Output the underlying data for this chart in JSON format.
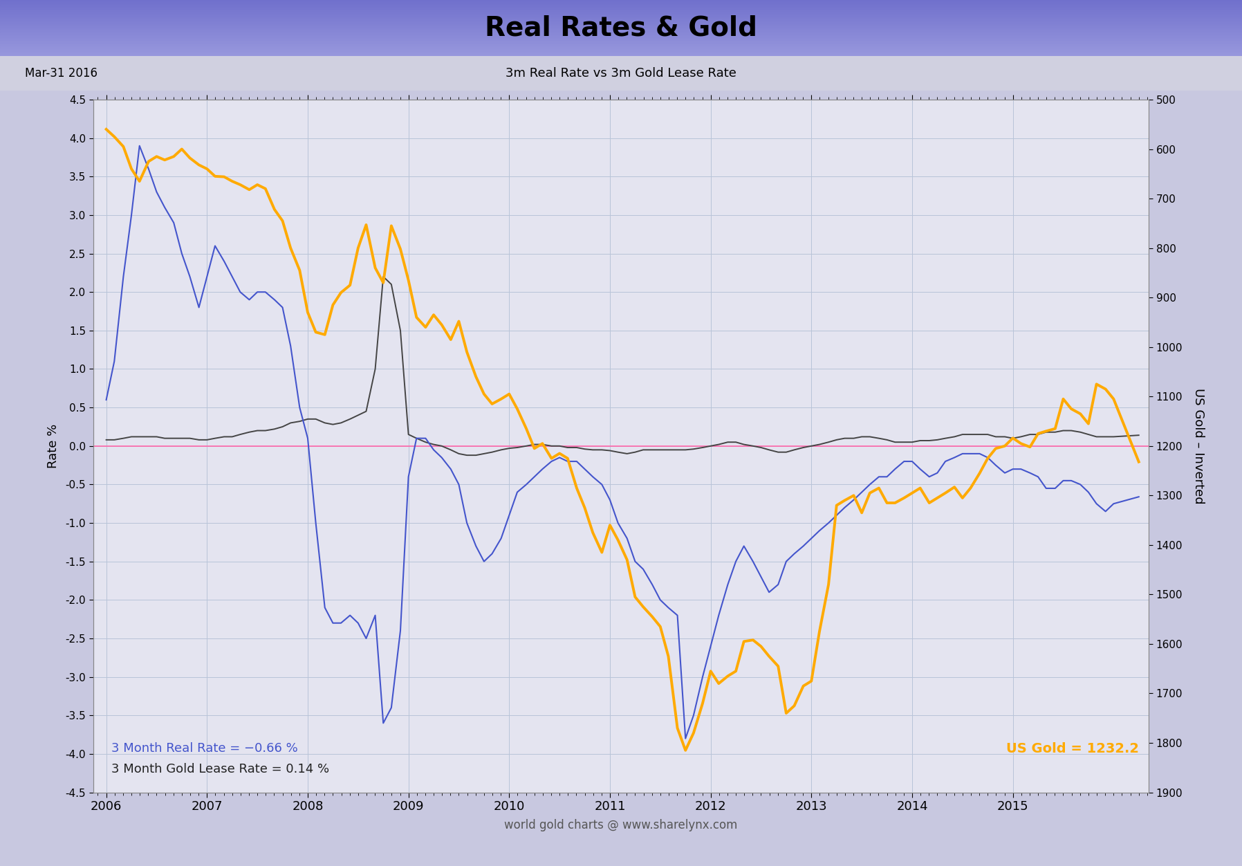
{
  "title": "Real Rates & Gold",
  "subtitle_left": "Mar-31 2016",
  "subtitle_center": "3m Real Rate vs 3m Gold Lease Rate",
  "xlabel": "world gold charts @ www.sharelynx.com",
  "ylabel_left": "Rate %",
  "ylabel_right": "US Gold – Inverted",
  "ylim_left": [
    -4.5,
    4.5
  ],
  "annotation_blue": "3 Month Real Rate = −0.66 %",
  "annotation_black": "3 Month Gold Lease Rate = 0.14 %",
  "annotation_gold": "US Gold = 1232.2",
  "background_color": "#c8c8e0",
  "plot_bg_color": "#e4e4f0",
  "grid_color": "#b8c4d8",
  "title_bg_color_top": "#7070cc",
  "title_bg_color_bottom": "#9898dd",
  "blue_line_color": "#4455cc",
  "gold_line_color": "#ffaa00",
  "black_line_color": "#444444",
  "pink_line_color": "#ff66aa",
  "real_rate_data": {
    "x": [
      2006.0,
      2006.08,
      2006.17,
      2006.25,
      2006.33,
      2006.42,
      2006.5,
      2006.58,
      2006.67,
      2006.75,
      2006.83,
      2006.92,
      2007.0,
      2007.08,
      2007.17,
      2007.25,
      2007.33,
      2007.42,
      2007.5,
      2007.58,
      2007.67,
      2007.75,
      2007.83,
      2007.92,
      2008.0,
      2008.08,
      2008.17,
      2008.25,
      2008.33,
      2008.42,
      2008.5,
      2008.58,
      2008.67,
      2008.75,
      2008.83,
      2008.92,
      2009.0,
      2009.08,
      2009.17,
      2009.25,
      2009.33,
      2009.42,
      2009.5,
      2009.58,
      2009.67,
      2009.75,
      2009.83,
      2009.92,
      2010.0,
      2010.08,
      2010.17,
      2010.25,
      2010.33,
      2010.42,
      2010.5,
      2010.58,
      2010.67,
      2010.75,
      2010.83,
      2010.92,
      2011.0,
      2011.08,
      2011.17,
      2011.25,
      2011.33,
      2011.42,
      2011.5,
      2011.58,
      2011.67,
      2011.75,
      2011.83,
      2011.92,
      2012.0,
      2012.08,
      2012.17,
      2012.25,
      2012.33,
      2012.42,
      2012.5,
      2012.58,
      2012.67,
      2012.75,
      2012.83,
      2012.92,
      2013.0,
      2013.08,
      2013.17,
      2013.25,
      2013.33,
      2013.42,
      2013.5,
      2013.58,
      2013.67,
      2013.75,
      2013.83,
      2013.92,
      2014.0,
      2014.08,
      2014.17,
      2014.25,
      2014.33,
      2014.42,
      2014.5,
      2014.58,
      2014.67,
      2014.75,
      2014.83,
      2014.92,
      2015.0,
      2015.08,
      2015.17,
      2015.25,
      2015.33,
      2015.42,
      2015.5,
      2015.58,
      2015.67,
      2015.75,
      2015.83,
      2015.92,
      2016.0,
      2016.25
    ],
    "y": [
      0.6,
      1.1,
      2.2,
      3.0,
      3.9,
      3.6,
      3.3,
      3.1,
      2.9,
      2.5,
      2.2,
      1.8,
      2.2,
      2.6,
      2.4,
      2.2,
      2.0,
      1.9,
      2.0,
      2.0,
      1.9,
      1.8,
      1.3,
      0.5,
      0.1,
      -1.0,
      -2.1,
      -2.3,
      -2.3,
      -2.2,
      -2.3,
      -2.5,
      -2.2,
      -3.6,
      -3.4,
      -2.4,
      -0.4,
      0.1,
      0.1,
      -0.05,
      -0.15,
      -0.3,
      -0.5,
      -1.0,
      -1.3,
      -1.5,
      -1.4,
      -1.2,
      -0.9,
      -0.6,
      -0.5,
      -0.4,
      -0.3,
      -0.2,
      -0.15,
      -0.2,
      -0.2,
      -0.3,
      -0.4,
      -0.5,
      -0.7,
      -1.0,
      -1.2,
      -1.5,
      -1.6,
      -1.8,
      -2.0,
      -2.1,
      -2.2,
      -3.8,
      -3.5,
      -3.0,
      -2.6,
      -2.2,
      -1.8,
      -1.5,
      -1.3,
      -1.5,
      -1.7,
      -1.9,
      -1.8,
      -1.5,
      -1.4,
      -1.3,
      -1.2,
      -1.1,
      -1.0,
      -0.9,
      -0.8,
      -0.7,
      -0.6,
      -0.5,
      -0.4,
      -0.4,
      -0.3,
      -0.2,
      -0.2,
      -0.3,
      -0.4,
      -0.35,
      -0.2,
      -0.15,
      -0.1,
      -0.1,
      -0.1,
      -0.15,
      -0.25,
      -0.35,
      -0.3,
      -0.3,
      -0.35,
      -0.4,
      -0.55,
      -0.55,
      -0.45,
      -0.45,
      -0.5,
      -0.6,
      -0.75,
      -0.85,
      -0.75,
      -0.66
    ]
  },
  "gold_lease_rate_data": {
    "x": [
      2006.0,
      2006.08,
      2006.17,
      2006.25,
      2006.33,
      2006.42,
      2006.5,
      2006.58,
      2006.67,
      2006.75,
      2006.83,
      2006.92,
      2007.0,
      2007.08,
      2007.17,
      2007.25,
      2007.33,
      2007.42,
      2007.5,
      2007.58,
      2007.67,
      2007.75,
      2007.83,
      2007.92,
      2008.0,
      2008.08,
      2008.17,
      2008.25,
      2008.33,
      2008.42,
      2008.5,
      2008.58,
      2008.67,
      2008.75,
      2008.83,
      2008.92,
      2009.0,
      2009.08,
      2009.17,
      2009.25,
      2009.33,
      2009.42,
      2009.5,
      2009.58,
      2009.67,
      2009.75,
      2009.83,
      2009.92,
      2010.0,
      2010.08,
      2010.17,
      2010.25,
      2010.33,
      2010.42,
      2010.5,
      2010.58,
      2010.67,
      2010.75,
      2010.83,
      2010.92,
      2011.0,
      2011.08,
      2011.17,
      2011.25,
      2011.33,
      2011.42,
      2011.5,
      2011.58,
      2011.67,
      2011.75,
      2011.83,
      2011.92,
      2012.0,
      2012.08,
      2012.17,
      2012.25,
      2012.33,
      2012.42,
      2012.5,
      2012.58,
      2012.67,
      2012.75,
      2012.83,
      2012.92,
      2013.0,
      2013.08,
      2013.17,
      2013.25,
      2013.33,
      2013.42,
      2013.5,
      2013.58,
      2013.67,
      2013.75,
      2013.83,
      2013.92,
      2014.0,
      2014.08,
      2014.17,
      2014.25,
      2014.33,
      2014.42,
      2014.5,
      2014.58,
      2014.67,
      2014.75,
      2014.83,
      2014.92,
      2015.0,
      2015.08,
      2015.17,
      2015.25,
      2015.33,
      2015.42,
      2015.5,
      2015.58,
      2015.67,
      2015.75,
      2015.83,
      2015.92,
      2016.0,
      2016.25
    ],
    "y": [
      0.08,
      0.08,
      0.1,
      0.12,
      0.12,
      0.12,
      0.12,
      0.1,
      0.1,
      0.1,
      0.1,
      0.08,
      0.08,
      0.1,
      0.12,
      0.12,
      0.15,
      0.18,
      0.2,
      0.2,
      0.22,
      0.25,
      0.3,
      0.32,
      0.35,
      0.35,
      0.3,
      0.28,
      0.3,
      0.35,
      0.4,
      0.45,
      1.0,
      2.2,
      2.1,
      1.5,
      0.15,
      0.1,
      0.05,
      0.02,
      0.0,
      -0.05,
      -0.1,
      -0.12,
      -0.12,
      -0.1,
      -0.08,
      -0.05,
      -0.03,
      -0.02,
      0.0,
      0.02,
      0.02,
      0.0,
      0.0,
      -0.02,
      -0.02,
      -0.04,
      -0.05,
      -0.05,
      -0.06,
      -0.08,
      -0.1,
      -0.08,
      -0.05,
      -0.05,
      -0.05,
      -0.05,
      -0.05,
      -0.05,
      -0.04,
      -0.02,
      0.0,
      0.02,
      0.05,
      0.05,
      0.02,
      0.0,
      -0.02,
      -0.05,
      -0.08,
      -0.08,
      -0.05,
      -0.02,
      0.0,
      0.02,
      0.05,
      0.08,
      0.1,
      0.1,
      0.12,
      0.12,
      0.1,
      0.08,
      0.05,
      0.05,
      0.05,
      0.07,
      0.07,
      0.08,
      0.1,
      0.12,
      0.15,
      0.15,
      0.15,
      0.15,
      0.12,
      0.12,
      0.1,
      0.12,
      0.15,
      0.15,
      0.18,
      0.18,
      0.2,
      0.2,
      0.18,
      0.15,
      0.12,
      0.12,
      0.12,
      0.14
    ]
  },
  "gold_price_data": {
    "x": [
      2006.0,
      2006.08,
      2006.17,
      2006.25,
      2006.33,
      2006.42,
      2006.5,
      2006.58,
      2006.67,
      2006.75,
      2006.83,
      2006.92,
      2007.0,
      2007.08,
      2007.17,
      2007.25,
      2007.33,
      2007.42,
      2007.5,
      2007.58,
      2007.67,
      2007.75,
      2007.83,
      2007.92,
      2008.0,
      2008.08,
      2008.17,
      2008.25,
      2008.33,
      2008.42,
      2008.5,
      2008.58,
      2008.67,
      2008.75,
      2008.83,
      2008.92,
      2009.0,
      2009.08,
      2009.17,
      2009.25,
      2009.33,
      2009.42,
      2009.5,
      2009.58,
      2009.67,
      2009.75,
      2009.83,
      2009.92,
      2010.0,
      2010.08,
      2010.17,
      2010.25,
      2010.33,
      2010.42,
      2010.5,
      2010.58,
      2010.67,
      2010.75,
      2010.83,
      2010.92,
      2011.0,
      2011.08,
      2011.17,
      2011.25,
      2011.33,
      2011.42,
      2011.5,
      2011.58,
      2011.67,
      2011.75,
      2011.83,
      2011.92,
      2012.0,
      2012.08,
      2012.17,
      2012.25,
      2012.33,
      2012.42,
      2012.5,
      2012.58,
      2012.67,
      2012.75,
      2012.83,
      2012.92,
      2013.0,
      2013.08,
      2013.17,
      2013.25,
      2013.33,
      2013.42,
      2013.5,
      2013.58,
      2013.67,
      2013.75,
      2013.83,
      2013.92,
      2014.0,
      2014.08,
      2014.17,
      2014.25,
      2014.33,
      2014.42,
      2014.5,
      2014.58,
      2014.67,
      2014.75,
      2014.83,
      2014.92,
      2015.0,
      2015.08,
      2015.17,
      2015.25,
      2015.33,
      2015.42,
      2015.5,
      2015.58,
      2015.67,
      2015.75,
      2015.83,
      2015.92,
      2016.0,
      2016.25
    ],
    "y": [
      560,
      575,
      595,
      640,
      665,
      625,
      615,
      622,
      615,
      600,
      618,
      632,
      640,
      655,
      656,
      665,
      672,
      682,
      672,
      680,
      722,
      745,
      800,
      845,
      930,
      970,
      975,
      915,
      890,
      875,
      800,
      753,
      840,
      870,
      755,
      802,
      865,
      940,
      960,
      935,
      955,
      985,
      948,
      1010,
      1060,
      1095,
      1115,
      1105,
      1095,
      1125,
      1165,
      1205,
      1195,
      1225,
      1215,
      1225,
      1285,
      1325,
      1375,
      1415,
      1360,
      1390,
      1430,
      1505,
      1525,
      1545,
      1565,
      1625,
      1770,
      1815,
      1780,
      1720,
      1655,
      1680,
      1665,
      1655,
      1595,
      1592,
      1605,
      1625,
      1645,
      1740,
      1725,
      1685,
      1675,
      1575,
      1480,
      1320,
      1310,
      1300,
      1335,
      1295,
      1285,
      1315,
      1315,
      1305,
      1295,
      1285,
      1315,
      1305,
      1295,
      1283,
      1305,
      1285,
      1255,
      1225,
      1205,
      1200,
      1184,
      1195,
      1202,
      1175,
      1170,
      1165,
      1105,
      1125,
      1135,
      1155,
      1075,
      1085,
      1105,
      1232
    ]
  }
}
